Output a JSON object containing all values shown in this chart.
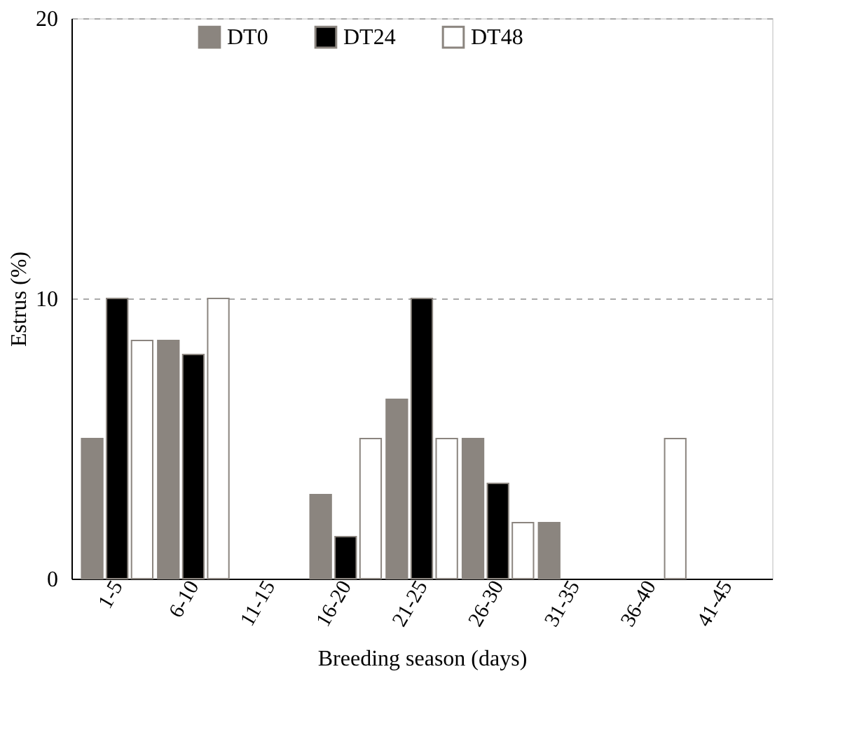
{
  "chart_data": {
    "type": "bar",
    "xlabel": "Breeding season (days)",
    "ylabel": "Estrus (%)",
    "categories": [
      "1-5",
      "6-10",
      "11-15",
      "16-20",
      "21-25",
      "26-30",
      "31-35",
      "36-40",
      "41-45"
    ],
    "series": [
      {
        "name": "DT0",
        "color": "#8b857f",
        "values": [
          5,
          8.5,
          null,
          3,
          6.4,
          5,
          2,
          null,
          null
        ]
      },
      {
        "name": "DT24",
        "color": "#000000",
        "values": [
          10,
          8,
          null,
          1.5,
          10,
          3.4,
          null,
          null,
          null
        ]
      },
      {
        "name": "DT48",
        "color": "#ffffff",
        "values": [
          8.5,
          10,
          null,
          5,
          5,
          2,
          null,
          5,
          null
        ]
      }
    ],
    "ylim": [
      0,
      20
    ],
    "yticks": [
      0,
      10,
      20
    ],
    "grid": "y",
    "legend": "top"
  }
}
